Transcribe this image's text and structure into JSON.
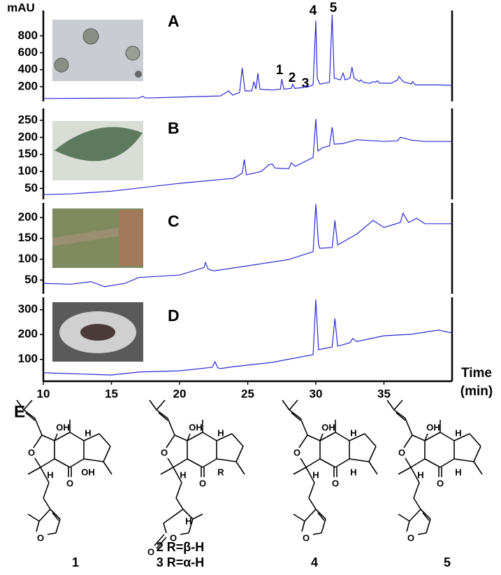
{
  "chart_data": [
    {
      "type": "line",
      "title": "A",
      "ylabel": "mAU",
      "xlim": [
        10,
        40
      ],
      "ylim": [
        25,
        1100
      ],
      "yticks": [
        200,
        400,
        600,
        800
      ],
      "annotations": [
        "1",
        "2",
        "3",
        "4",
        "5"
      ],
      "x": [
        10,
        17,
        17.3,
        17.5,
        23,
        23.6,
        23.9,
        24.4,
        24.6,
        24.8,
        25.3,
        25.45,
        25.6,
        25.75,
        25.9,
        26.8,
        27.4,
        27.5,
        27.65,
        28.2,
        28.3,
        28.45,
        29.1,
        29.2,
        29.3,
        29.8,
        30,
        30.1,
        30.3,
        31,
        31.2,
        31.35,
        31.8,
        32,
        32.15,
        32.5,
        32.65,
        32.8,
        33.2,
        33.3,
        33.5,
        34,
        34.2,
        34.4,
        34.5,
        34.7,
        35.5,
        36,
        36.1,
        36.4,
        37,
        37.1,
        37.3,
        38,
        39,
        40
      ],
      "series": [
        {
          "name": "A",
          "color": "#2a2ad6",
          "values": [
            60,
            65,
            85,
            65,
            90,
            150,
            100,
            130,
            420,
            150,
            150,
            260,
            170,
            360,
            170,
            160,
            170,
            290,
            170,
            180,
            230,
            180,
            190,
            210,
            190,
            220,
            980,
            300,
            230,
            250,
            1050,
            300,
            280,
            360,
            280,
            300,
            430,
            300,
            260,
            280,
            250,
            240,
            260,
            250,
            270,
            240,
            240,
            280,
            320,
            260,
            230,
            260,
            220,
            220,
            220,
            215
          ]
        }
      ]
    },
    {
      "type": "line",
      "title": "B",
      "xlim": [
        10,
        40
      ],
      "ylim": [
        18,
        285
      ],
      "yticks": [
        50,
        100,
        150,
        200,
        250
      ],
      "x": [
        10,
        12,
        15,
        20,
        24,
        24.6,
        24.75,
        24.9,
        26,
        26.5,
        26.6,
        26.8,
        27,
        28,
        28.2,
        28.5,
        29.8,
        30,
        30.15,
        30.5,
        31,
        31.2,
        31.35,
        32,
        33,
        35,
        36,
        36.2,
        36.5,
        37,
        38,
        40
      ],
      "series": [
        {
          "name": "B",
          "color": "#2a2ad6",
          "values": [
            32,
            34,
            42,
            65,
            80,
            95,
            135,
            90,
            100,
            118,
            120,
            122,
            110,
            108,
            125,
            115,
            141,
            254,
            160,
            170,
            175,
            230,
            180,
            182,
            193,
            188,
            190,
            200,
            198,
            192,
            188,
            188
          ]
        }
      ]
    },
    {
      "type": "line",
      "title": "C",
      "xlim": [
        10,
        40
      ],
      "ylim": [
        17,
        235
      ],
      "yticks": [
        50,
        100,
        150,
        200
      ],
      "x": [
        10,
        12,
        13.5,
        14.5,
        16,
        17,
        20,
        21.8,
        21.9,
        22.1,
        22.5,
        25,
        28,
        29.8,
        30,
        30.2,
        30.3,
        31.2,
        31.4,
        31.6,
        33,
        34.2,
        35,
        36.2,
        36.4,
        36.8,
        37.4,
        38,
        40
      ],
      "series": [
        {
          "name": "C",
          "color": "#2a2ad6",
          "values": [
            42,
            40,
            46,
            34,
            42,
            56,
            62,
            80,
            92,
            76,
            72,
            84,
            99,
            118,
            232,
            135,
            126,
            128,
            193,
            134,
            160,
            193,
            176,
            188,
            210,
            188,
            198,
            185,
            185
          ]
        }
      ]
    },
    {
      "type": "line",
      "title": "D",
      "xlabel": "Time",
      "xlabel_unit": "(min)",
      "xlim": [
        10,
        40
      ],
      "ylim": [
        12,
        350
      ],
      "xticks": [
        10,
        15,
        20,
        25,
        30,
        35
      ],
      "yticks": [
        100,
        200,
        300
      ],
      "x": [
        10,
        15,
        17,
        20,
        22.4,
        22.6,
        22.8,
        23,
        24,
        26.8,
        29.8,
        30,
        30.2,
        31.2,
        31.4,
        31.6,
        32.5,
        32.7,
        33,
        35,
        37,
        39,
        40
      ],
      "series": [
        {
          "name": "D",
          "color": "#2a2ad6",
          "values": [
            46,
            37,
            49,
            54,
            68,
            91,
            66,
            63,
            71,
            88,
            119,
            341,
            139,
            150,
            265,
            153,
            167,
            184,
            172,
            195,
            201,
            218,
            206
          ]
        }
      ]
    }
  ],
  "panel_label": "E",
  "structures": [
    {
      "atoms": [
        "OH",
        "H",
        "O",
        "H",
        "OH",
        "O",
        "O"
      ],
      "labels": [
        "1"
      ]
    },
    {
      "atoms": [
        "OH",
        "H",
        "O",
        "H",
        "R",
        "O",
        "O",
        "O",
        "H"
      ],
      "labels": [
        "2 R=β-H",
        "3 R=α-H"
      ]
    },
    {
      "atoms": [
        "OH",
        "H",
        "O",
        "H",
        "H",
        "O",
        "O"
      ],
      "labels": [
        "4"
      ]
    },
    {
      "atoms": [
        "OH",
        "H",
        "O",
        "H",
        "H",
        "O",
        "O"
      ],
      "labels": [
        "5"
      ]
    }
  ]
}
